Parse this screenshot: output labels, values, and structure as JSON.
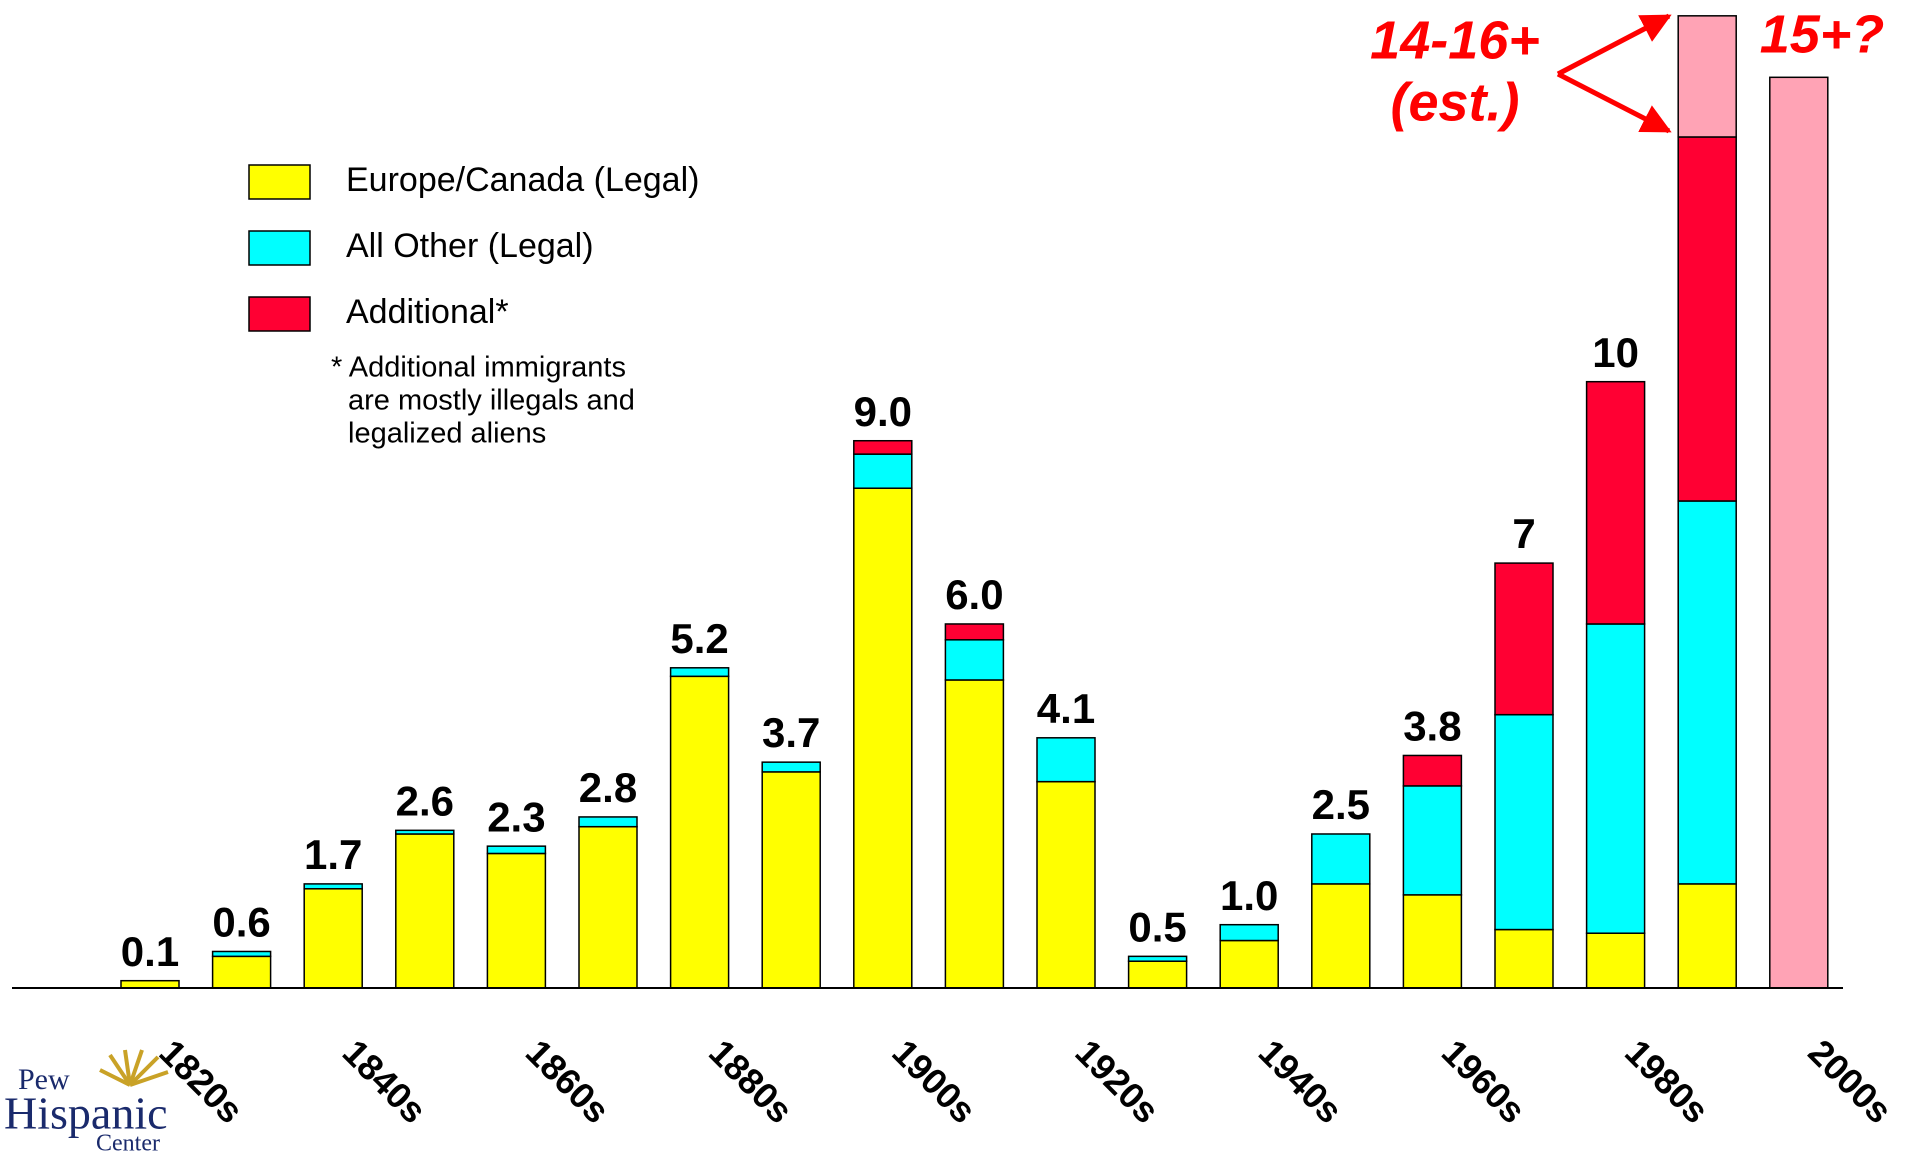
{
  "chart_data": {
    "type": "stacked-bar",
    "categories": [
      "1820s",
      null,
      "1840s",
      null,
      "1860s",
      null,
      "1880s",
      null,
      "1900s",
      null,
      "1920s",
      null,
      "1940s",
      null,
      "1960s",
      null,
      "1980s",
      null,
      "2000s"
    ],
    "series": [
      {
        "name": "Europe/Canada (Legal)",
        "color": "#ffff00",
        "values": [
          0.12,
          0.52,
          1.63,
          2.53,
          2.21,
          2.65,
          5.12,
          3.55,
          8.21,
          5.06,
          3.39,
          0.44,
          0.78,
          1.71,
          1.53,
          0.96,
          0.9,
          1.71,
          0
        ]
      },
      {
        "name": "All Other (Legal)",
        "color": "#00ffff",
        "values": [
          0,
          0.08,
          0.08,
          0.06,
          0.12,
          0.16,
          0.14,
          0.16,
          0.56,
          0.66,
          0.72,
          0.08,
          0.26,
          0.82,
          1.79,
          3.53,
          5.08,
          6.29,
          0
        ]
      },
      {
        "name": "Additional*",
        "color": "#ff0033",
        "values": [
          0,
          0,
          0,
          0,
          0,
          0,
          0,
          0,
          0.22,
          0.26,
          0,
          0,
          0,
          0,
          0.5,
          2.49,
          3.98,
          5.98,
          0
        ]
      },
      {
        "color": "#ffa3b5",
        "values": [
          0,
          0,
          0,
          0,
          0,
          0,
          0,
          0,
          0,
          0,
          0,
          0,
          0,
          0,
          0,
          0,
          0,
          1.99,
          14.96
        ]
      }
    ],
    "totals": {
      "values": [
        0.1,
        0.6,
        1.7,
        2.6,
        2.3,
        2.8,
        5.2,
        3.7,
        9.0,
        6.0,
        4.1,
        0.5,
        1.0,
        2.5,
        3.8,
        7,
        10,
        null,
        null
      ],
      "value_labels": [
        "0.1",
        "0.6",
        "1.7",
        "2.6",
        "2.3",
        "2.8",
        "5.2",
        "3.7",
        "9.0",
        "6.0",
        "4.1",
        "0.5",
        "1.0",
        "2.5",
        "3.8",
        "7",
        "10",
        null,
        null
      ]
    },
    "annotations": [
      "14-16+",
      "(est.)",
      "15+?"
    ],
    "note": [
      "* Additional immigrants",
      "are mostly illegals and",
      "legalized aliens"
    ],
    "logo": [
      "Pew",
      "Hispanic",
      "Center"
    ],
    "ylim": [
      0,
      16
    ],
    "legend": "upper left"
  }
}
